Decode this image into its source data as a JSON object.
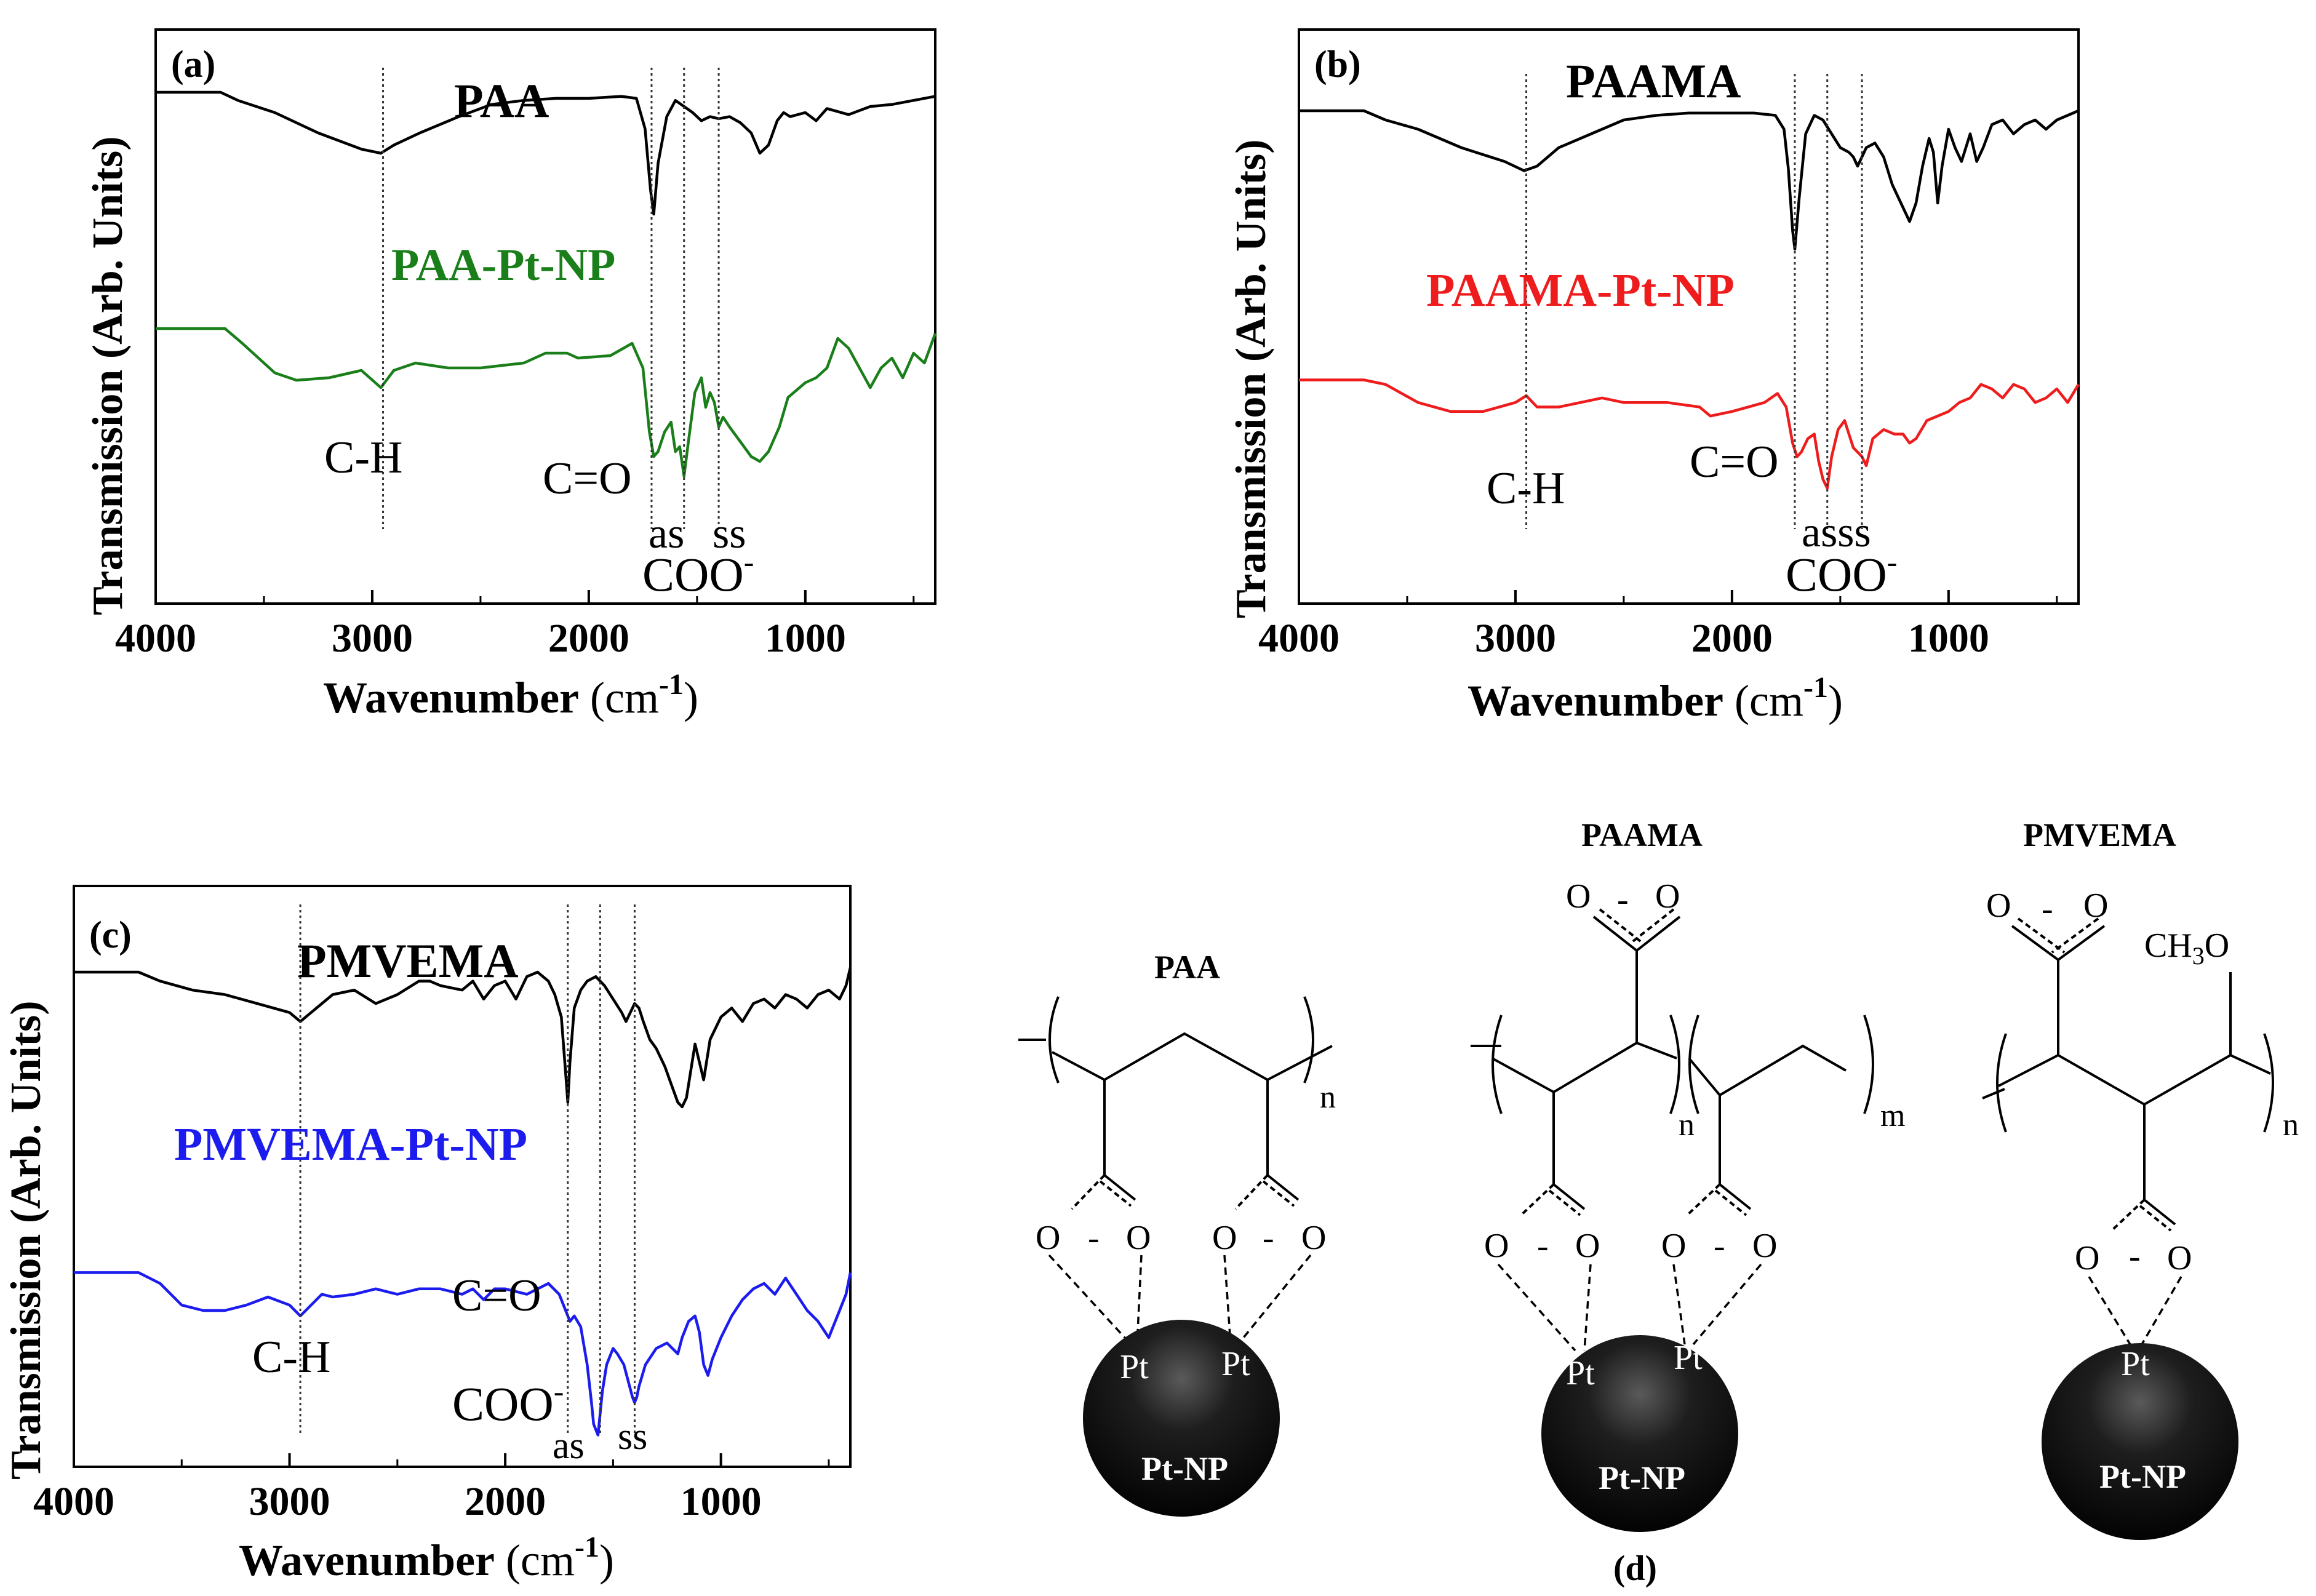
{
  "colors": {
    "black": "#000000",
    "paa_pt": "#1a7f1a",
    "paama_pt": "#ee1c1c",
    "pmvema_pt": "#1c1cee",
    "particle": "#111111"
  },
  "chart_data": [
    {
      "type": "line",
      "panel_label": "(a)",
      "xlabel": "Wavenumber",
      "xunit_open": "(cm",
      "xunit_sup": "-1",
      "xunit_close": ")",
      "ylabel": "Transmission (Arb. Units)",
      "xlim": [
        4000,
        400
      ],
      "xticks": [
        4000,
        3000,
        2000,
        1000
      ],
      "series": [
        {
          "name": "PAA",
          "color": "#000000",
          "x": [
            4000,
            3700,
            3620,
            3450,
            3250,
            3050,
            2960,
            2900,
            2780,
            2600,
            2450,
            2300,
            2150,
            2000,
            1850,
            1780,
            1740,
            1715,
            1700,
            1680,
            1640,
            1600,
            1560,
            1520,
            1480,
            1440,
            1400,
            1350,
            1300,
            1250,
            1210,
            1170,
            1130,
            1100,
            1070,
            1000,
            950,
            900,
            800,
            700,
            600,
            500,
            400
          ],
          "y": [
            100,
            100,
            96,
            90,
            80,
            72,
            70,
            74,
            80,
            88,
            94,
            96,
            97,
            97,
            98,
            97,
            82,
            52,
            40,
            65,
            88,
            96,
            93,
            90,
            86,
            88,
            87,
            88,
            85,
            80,
            70,
            74,
            86,
            90,
            88,
            90,
            86,
            92,
            89,
            93,
            94,
            96,
            98
          ]
        },
        {
          "name": "PAA-Pt-NP",
          "color": "#1a7f1a",
          "x": [
            4000,
            3680,
            3600,
            3450,
            3350,
            3200,
            3050,
            2960,
            2900,
            2800,
            2650,
            2500,
            2300,
            2200,
            2100,
            2050,
            1900,
            1800,
            1750,
            1720,
            1700,
            1680,
            1650,
            1620,
            1600,
            1580,
            1560,
            1540,
            1510,
            1480,
            1460,
            1440,
            1420,
            1400,
            1380,
            1350,
            1300,
            1250,
            1210,
            1170,
            1120,
            1080,
            1000,
            950,
            900,
            850,
            800,
            700,
            650,
            600,
            550,
            500,
            450,
            400
          ],
          "y": [
            64,
            64,
            58,
            46,
            43,
            44,
            47,
            40,
            47,
            50,
            48,
            48,
            50,
            54,
            54,
            52,
            53,
            58,
            48,
            22,
            12,
            14,
            22,
            26,
            14,
            16,
            4,
            18,
            38,
            44,
            32,
            38,
            34,
            24,
            28,
            24,
            18,
            12,
            10,
            14,
            24,
            36,
            42,
            44,
            48,
            60,
            56,
            40,
            48,
            52,
            44,
            54,
            50,
            62
          ]
        }
      ],
      "annotations": {
        "title": "PAA",
        "series2_label": "PAA-Pt-NP",
        "ch": "C-H",
        "co": "C=O",
        "as": "as",
        "ss": "ss",
        "coo": "COO",
        "coo_sup": "-"
      },
      "markers": [
        2950,
        1710,
        1560,
        1400
      ]
    },
    {
      "type": "line",
      "panel_label": "(b)",
      "xlabel": "Wavenumber",
      "xunit_open": "(cm",
      "xunit_sup": "-1",
      "xunit_close": ")",
      "ylabel": "Transmission (Arb. Units)",
      "xlim": [
        4000,
        400
      ],
      "xticks": [
        4000,
        3000,
        2000,
        1000
      ],
      "series": [
        {
          "name": "PAAMA",
          "color": "#000000",
          "x": [
            4000,
            3700,
            3600,
            3450,
            3250,
            3050,
            2960,
            2900,
            2800,
            2650,
            2500,
            2350,
            2200,
            2100,
            2000,
            1900,
            1800,
            1760,
            1740,
            1720,
            1710,
            1690,
            1660,
            1620,
            1580,
            1540,
            1500,
            1460,
            1440,
            1420,
            1400,
            1380,
            1340,
            1300,
            1260,
            1220,
            1180,
            1150,
            1120,
            1090,
            1070,
            1050,
            1030,
            1000,
            970,
            940,
            900,
            870,
            840,
            800,
            750,
            700,
            650,
            600,
            550,
            500,
            450,
            400
          ],
          "y": [
            100,
            100,
            96,
            92,
            84,
            78,
            74,
            76,
            84,
            90,
            96,
            98,
            99,
            99,
            99,
            99,
            98,
            92,
            75,
            48,
            40,
            62,
            90,
            98,
            96,
            90,
            84,
            82,
            80,
            76,
            80,
            84,
            86,
            80,
            68,
            60,
            52,
            60,
            76,
            88,
            82,
            60,
            76,
            92,
            84,
            78,
            90,
            78,
            84,
            94,
            96,
            90,
            94,
            96,
            92,
            96,
            98,
            100
          ]
        },
        {
          "name": "PAAMA-Pt-NP",
          "color": "#ee1c1c",
          "x": [
            4000,
            3700,
            3600,
            3450,
            3300,
            3150,
            3000,
            2950,
            2900,
            2800,
            2700,
            2600,
            2500,
            2300,
            2150,
            2100,
            2000,
            1850,
            1790,
            1750,
            1720,
            1700,
            1680,
            1650,
            1620,
            1600,
            1580,
            1560,
            1540,
            1510,
            1480,
            1460,
            1440,
            1400,
            1380,
            1350,
            1300,
            1250,
            1210,
            1180,
            1150,
            1100,
            1000,
            950,
            900,
            850,
            800,
            750,
            700,
            650,
            600,
            550,
            500,
            450,
            400
          ],
          "y": [
            62,
            62,
            60,
            52,
            48,
            48,
            52,
            55,
            50,
            50,
            52,
            54,
            52,
            52,
            50,
            46,
            48,
            52,
            56,
            50,
            34,
            28,
            30,
            36,
            38,
            26,
            18,
            14,
            28,
            40,
            44,
            38,
            32,
            28,
            24,
            36,
            40,
            38,
            38,
            34,
            36,
            44,
            48,
            52,
            54,
            60,
            58,
            54,
            60,
            58,
            52,
            54,
            58,
            52,
            60
          ]
        }
      ],
      "annotations": {
        "title": "PAAMA",
        "series2_label": "PAAMA-Pt-NP",
        "ch": "C-H",
        "co": "C=O",
        "asss": "asss",
        "coo": "COO",
        "coo_sup": "-"
      },
      "markers": [
        2950,
        1710,
        1560,
        1400
      ]
    },
    {
      "type": "line",
      "panel_label": "(c)",
      "xlabel": "Wavenumber",
      "xunit_open": "(cm",
      "xunit_sup": "-1",
      "xunit_close": ")",
      "ylabel": "Transmission (Arb. Units)",
      "xlim": [
        4000,
        400
      ],
      "xticks": [
        4000,
        3000,
        2000,
        1000
      ],
      "series": [
        {
          "name": "PMVEMA",
          "color": "#000000",
          "x": [
            4000,
            3700,
            3600,
            3450,
            3300,
            3150,
            3000,
            2950,
            2900,
            2800,
            2700,
            2600,
            2500,
            2400,
            2350,
            2300,
            2200,
            2150,
            2100,
            2050,
            2000,
            1950,
            1900,
            1850,
            1800,
            1770,
            1740,
            1720,
            1710,
            1700,
            1680,
            1650,
            1620,
            1580,
            1540,
            1500,
            1460,
            1440,
            1420,
            1400,
            1380,
            1360,
            1330,
            1300,
            1260,
            1230,
            1200,
            1180,
            1160,
            1140,
            1120,
            1100,
            1080,
            1050,
            1000,
            950,
            900,
            850,
            800,
            750,
            700,
            650,
            600,
            550,
            500,
            450,
            420,
            410,
            400
          ],
          "y": [
            100,
            100,
            96,
            92,
            90,
            86,
            82,
            78,
            82,
            90,
            92,
            86,
            90,
            96,
            96,
            94,
            92,
            96,
            88,
            94,
            96,
            88,
            98,
            100,
            96,
            90,
            80,
            55,
            42,
            60,
            84,
            92,
            96,
            98,
            94,
            88,
            82,
            78,
            82,
            86,
            84,
            78,
            70,
            66,
            58,
            50,
            42,
            40,
            44,
            56,
            68,
            60,
            52,
            70,
            80,
            84,
            78,
            86,
            88,
            84,
            90,
            88,
            84,
            90,
            92,
            88,
            94,
            98,
            102
          ]
        },
        {
          "name": "PMVEMA-Pt-NP",
          "color": "#1c1cee",
          "x": [
            4000,
            3700,
            3600,
            3500,
            3400,
            3300,
            3200,
            3100,
            3000,
            2950,
            2900,
            2850,
            2800,
            2700,
            2600,
            2500,
            2400,
            2300,
            2200,
            2150,
            2100,
            2050,
            2000,
            1900,
            1800,
            1750,
            1720,
            1700,
            1680,
            1650,
            1620,
            1600,
            1590,
            1570,
            1550,
            1530,
            1510,
            1500,
            1480,
            1450,
            1430,
            1410,
            1400,
            1390,
            1380,
            1350,
            1300,
            1250,
            1200,
            1180,
            1150,
            1120,
            1100,
            1080,
            1060,
            1040,
            1000,
            950,
            900,
            850,
            800,
            750,
            700,
            650,
            600,
            550,
            500,
            450,
            420,
            400
          ],
          "y": [
            64,
            64,
            60,
            52,
            50,
            50,
            52,
            55,
            52,
            48,
            52,
            56,
            55,
            56,
            58,
            56,
            58,
            58,
            56,
            58,
            54,
            58,
            58,
            56,
            60,
            56,
            50,
            46,
            48,
            44,
            30,
            16,
            8,
            4,
            20,
            30,
            34,
            36,
            34,
            30,
            24,
            18,
            16,
            18,
            22,
            30,
            36,
            38,
            34,
            40,
            46,
            48,
            42,
            30,
            26,
            32,
            40,
            48,
            54,
            58,
            60,
            56,
            62,
            56,
            50,
            46,
            40,
            50,
            56,
            64
          ]
        }
      ],
      "annotations": {
        "title": "PMVEMA",
        "series2_label": "PMVEMA-Pt-NP",
        "ch": "C-H",
        "co": "C=O",
        "as": "as",
        "ss": "ss",
        "coo": "COO",
        "coo_sup": "-"
      },
      "markers": [
        2950,
        1710,
        1560,
        1400
      ]
    }
  ],
  "structures": {
    "label": "(d)",
    "paa": {
      "name": "PAA",
      "sub_n": "n",
      "o": "O",
      "minus": "-",
      "pt": "Pt",
      "np": "Pt-NP"
    },
    "paama": {
      "name": "PAAMA",
      "sub_n": "n",
      "sub_m": "m",
      "o": "O",
      "minus": "-",
      "pt": "Pt",
      "np": "Pt-NP"
    },
    "pmvema": {
      "name": "PMVEMA",
      "sub_n": "n",
      "o": "O",
      "minus": "-",
      "ch3o": "CH",
      "ch3o_sub": "3",
      "ch3o_o": "O",
      "pt": "Pt",
      "np": "Pt-NP"
    }
  }
}
